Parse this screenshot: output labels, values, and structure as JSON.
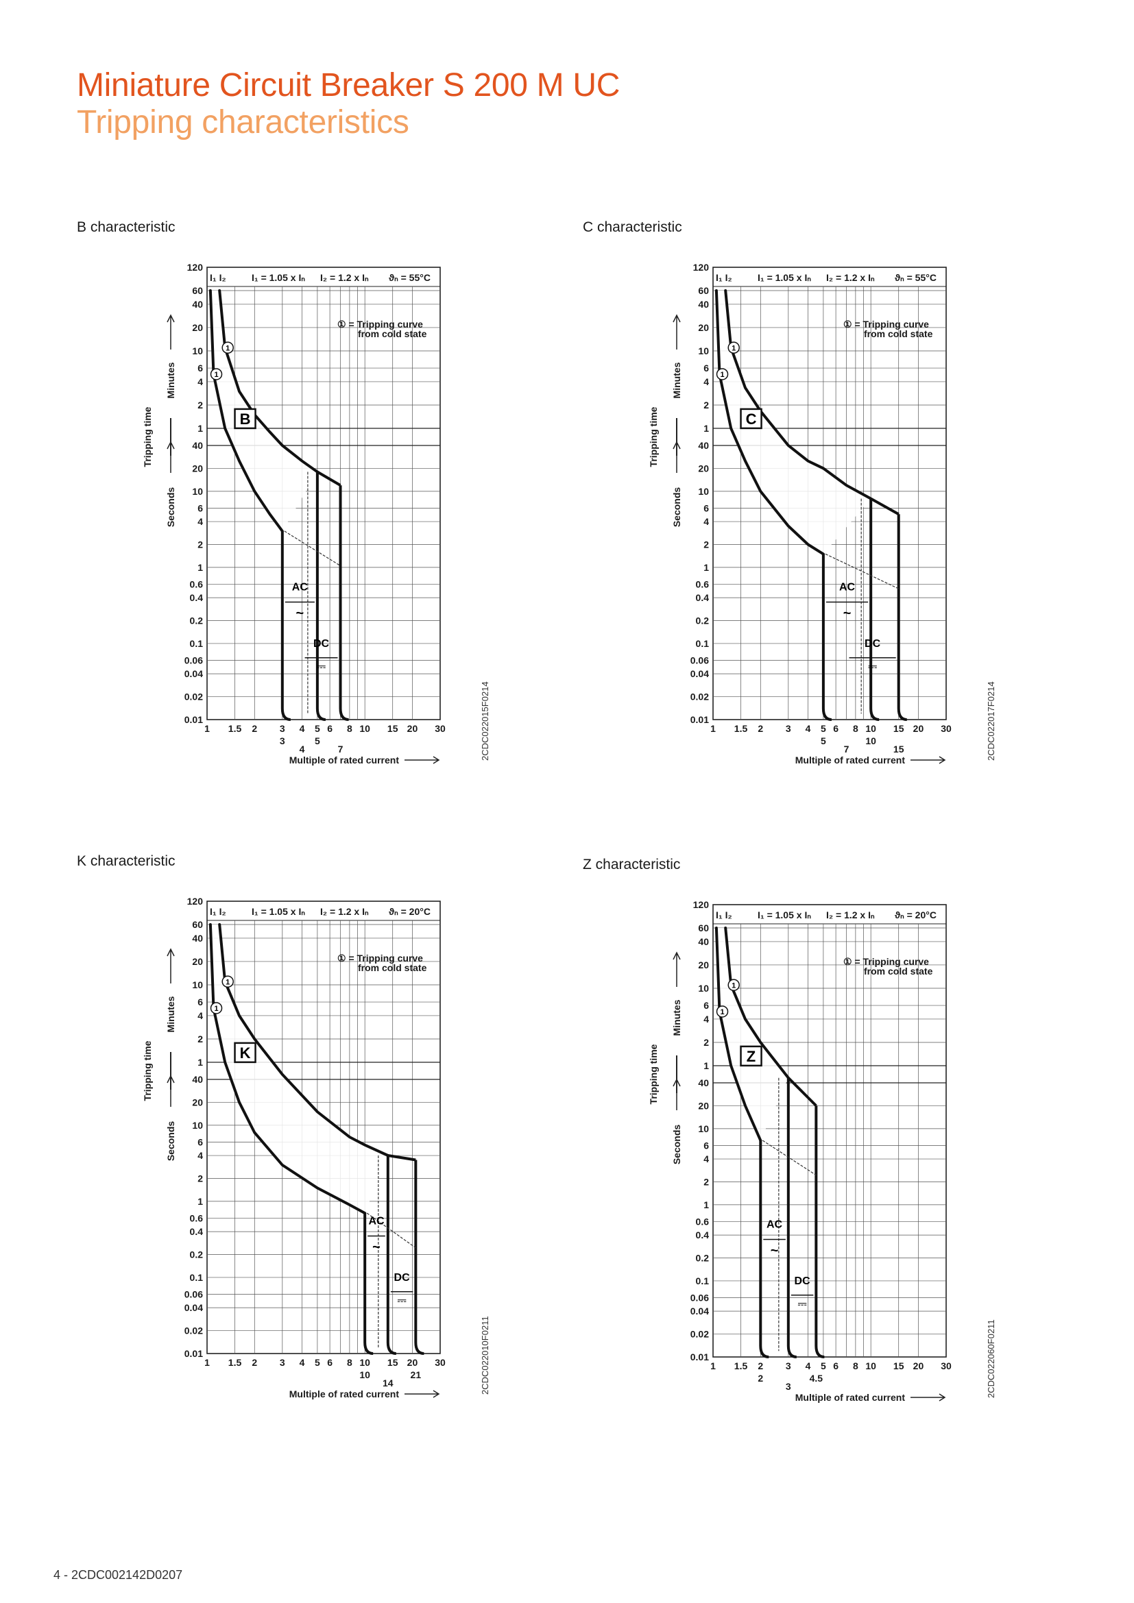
{
  "header": {
    "title": "Miniature Circuit Breaker S 200 M UC",
    "subtitle": "Tripping characteristics",
    "title_color": "#e2541e",
    "subtitle_color": "#f2a162"
  },
  "footer": {
    "text": "4 - 2CDC002142D0207"
  },
  "chart_data": [
    {
      "type": "line",
      "heading": "B characteristic",
      "letter": "B",
      "code": "2CDC022015F0214",
      "params": [
        "I₁ = 1.05 x Iₙ",
        "I₂ = 1.2 x Iₙ",
        "ϑₙ = 55°C"
      ],
      "i_labels": "I₁ I₂",
      "legend": [
        "① = Tripping curve",
        "from cold state"
      ],
      "xlabel": "Multiple of rated current",
      "x_scale": "log",
      "xlim": [
        1,
        30
      ],
      "x_ticks": [
        "1",
        "1.5",
        "2",
        "3",
        "4",
        "5",
        "6",
        "8",
        "10",
        "15",
        "20",
        "30"
      ],
      "x_ticks_secondary": [
        [
          "3",
          3
        ],
        [
          "4",
          4
        ],
        [
          "5",
          5
        ],
        [
          "7",
          7
        ]
      ],
      "y_scale": "log",
      "y_ticks_minutes": [
        "120",
        "60",
        "40",
        "20",
        "10",
        "6",
        "4",
        "2",
        "1"
      ],
      "y_ticks_seconds": [
        "40",
        "20",
        "10",
        "6",
        "4",
        "2",
        "1",
        "0.6",
        "0.4",
        "0.2",
        "0.1",
        "0.06",
        "0.04",
        "0.02",
        "0.01"
      ],
      "ylabel": "Tripping time",
      "ylabel_minutes": "Minutes",
      "ylabel_seconds": "Seconds",
      "lower_curve": [
        [
          1.05,
          3600
        ],
        [
          1.1,
          300
        ],
        [
          1.3,
          60
        ],
        [
          1.6,
          25
        ],
        [
          2.0,
          10
        ],
        [
          2.5,
          5
        ],
        [
          3.0,
          3
        ]
      ],
      "upper_curve": [
        [
          1.2,
          3600
        ],
        [
          1.3,
          660
        ],
        [
          1.6,
          180
        ],
        [
          2.0,
          90
        ],
        [
          2.5,
          55
        ],
        [
          3.0,
          40
        ],
        [
          4.0,
          25
        ],
        [
          5.0,
          18
        ]
      ],
      "dc_tail": [
        [
          5.0,
          18
        ],
        [
          7.0,
          12
        ]
      ],
      "ac_range": [
        3,
        5
      ],
      "dc_range": [
        4,
        7
      ],
      "ac_label": "AC",
      "dc_label": "DC",
      "ac_symbol": "~",
      "dc_symbol": "⎓",
      "instant_time": 0.01
    },
    {
      "type": "line",
      "heading": "C characteristic",
      "letter": "C",
      "code": "2CDC022017F0214",
      "params": [
        "I₁ = 1.05 x Iₙ",
        "I₂ = 1.2 x Iₙ",
        "ϑₙ = 55°C"
      ],
      "i_labels": "I₁ I₂",
      "legend": [
        "① = Tripping curve",
        "from cold state"
      ],
      "xlabel": "Multiple of rated current",
      "x_scale": "log",
      "xlim": [
        1,
        30
      ],
      "x_ticks": [
        "1",
        "1.5",
        "2",
        "3",
        "4",
        "5",
        "6",
        "8",
        "10",
        "15",
        "20",
        "30"
      ],
      "x_ticks_secondary": [
        [
          "5",
          5
        ],
        [
          "7",
          7
        ],
        [
          "10",
          10
        ],
        [
          "15",
          15
        ]
      ],
      "y_scale": "log",
      "y_ticks_minutes": [
        "120",
        "60",
        "40",
        "20",
        "10",
        "6",
        "4",
        "2",
        "1"
      ],
      "y_ticks_seconds": [
        "40",
        "20",
        "10",
        "6",
        "4",
        "2",
        "1",
        "0.6",
        "0.4",
        "0.2",
        "0.1",
        "0.06",
        "0.04",
        "0.02",
        "0.01"
      ],
      "ylabel": "Tripping time",
      "ylabel_minutes": "Minutes",
      "ylabel_seconds": "Seconds",
      "lower_curve": [
        [
          1.05,
          3600
        ],
        [
          1.1,
          300
        ],
        [
          1.3,
          60
        ],
        [
          1.6,
          25
        ],
        [
          2.0,
          10
        ],
        [
          3.0,
          3.5
        ],
        [
          4.0,
          2
        ],
        [
          5.0,
          1.5
        ]
      ],
      "upper_curve": [
        [
          1.2,
          3600
        ],
        [
          1.3,
          660
        ],
        [
          1.6,
          200
        ],
        [
          2.0,
          100
        ],
        [
          3.0,
          40
        ],
        [
          4.0,
          25
        ],
        [
          5.0,
          20
        ],
        [
          7.0,
          12
        ],
        [
          10.0,
          8
        ]
      ],
      "dc_tail": [
        [
          10.0,
          8
        ],
        [
          15.0,
          5
        ]
      ],
      "ac_range": [
        5,
        10
      ],
      "dc_range": [
        7,
        15
      ],
      "ac_label": "AC",
      "dc_label": "DC",
      "ac_symbol": "~",
      "dc_symbol": "⎓",
      "instant_time": 0.01
    },
    {
      "type": "line",
      "heading": "K characteristic",
      "letter": "K",
      "code": "2CDC022010F0211",
      "params": [
        "I₁ = 1.05 x Iₙ",
        "I₂ = 1.2 x Iₙ",
        "ϑₙ = 20°C"
      ],
      "i_labels": "I₁ I₂",
      "legend": [
        "① = Tripping curve",
        "from cold state"
      ],
      "xlabel": "Multiple of rated current",
      "x_scale": "log",
      "xlim": [
        1,
        30
      ],
      "x_ticks": [
        "1",
        "1.5",
        "2",
        "3",
        "4",
        "5",
        "6",
        "8",
        "10",
        "15",
        "20",
        "30"
      ],
      "x_ticks_secondary": [
        [
          "10",
          10
        ],
        [
          "14",
          14
        ],
        [
          "21",
          21
        ]
      ],
      "y_scale": "log",
      "y_ticks_minutes": [
        "120",
        "60",
        "40",
        "20",
        "10",
        "6",
        "4",
        "2",
        "1"
      ],
      "y_ticks_seconds": [
        "40",
        "20",
        "10",
        "6",
        "4",
        "2",
        "1",
        "0.6",
        "0.4",
        "0.2",
        "0.1",
        "0.06",
        "0.04",
        "0.02",
        "0.01"
      ],
      "ylabel": "Tripping time",
      "ylabel_minutes": "Minutes",
      "ylabel_seconds": "Seconds",
      "lower_curve": [
        [
          1.05,
          3600
        ],
        [
          1.1,
          300
        ],
        [
          1.3,
          60
        ],
        [
          1.6,
          20
        ],
        [
          2.0,
          8
        ],
        [
          3.0,
          3
        ],
        [
          5.0,
          1.5
        ],
        [
          8.0,
          0.9
        ],
        [
          10.0,
          0.7
        ]
      ],
      "upper_curve": [
        [
          1.2,
          3600
        ],
        [
          1.3,
          660
        ],
        [
          1.6,
          240
        ],
        [
          2.0,
          120
        ],
        [
          3.0,
          45
        ],
        [
          5.0,
          15
        ],
        [
          8.0,
          7
        ],
        [
          10.0,
          5.5
        ],
        [
          14.0,
          4
        ]
      ],
      "dc_tail": [
        [
          14.0,
          4
        ],
        [
          21.0,
          3.5
        ]
      ],
      "ac_range": [
        10,
        14
      ],
      "dc_range": [
        14,
        21
      ],
      "ac_label": "AC",
      "dc_label": "DC",
      "ac_symbol": "~",
      "dc_symbol": "⎓",
      "instant_time": 0.01
    },
    {
      "type": "line",
      "heading": "Z characteristic",
      "letter": "Z",
      "code": "2CDC022060F0211",
      "params": [
        "I₁ = 1.05 x Iₙ",
        "I₂ = 1.2 x Iₙ",
        "ϑₙ = 20°C"
      ],
      "i_labels": "I₁ I₂",
      "legend": [
        "① = Tripping curve",
        "from cold state"
      ],
      "xlabel": "Multiple of rated current",
      "x_scale": "log",
      "xlim": [
        1,
        30
      ],
      "x_ticks": [
        "1",
        "1.5",
        "2",
        "3",
        "4",
        "5",
        "6",
        "8",
        "10",
        "15",
        "20",
        "30"
      ],
      "x_ticks_secondary": [
        [
          "2",
          2
        ],
        [
          "3",
          3
        ],
        [
          "4.5",
          4.5
        ]
      ],
      "y_scale": "log",
      "y_ticks_minutes": [
        "120",
        "60",
        "40",
        "20",
        "10",
        "6",
        "4",
        "2",
        "1"
      ],
      "y_ticks_seconds": [
        "40",
        "20",
        "10",
        "6",
        "4",
        "2",
        "1",
        "0.6",
        "0.4",
        "0.2",
        "0.1",
        "0.06",
        "0.04",
        "0.02",
        "0.01"
      ],
      "ylabel": "Tripping time",
      "ylabel_minutes": "Minutes",
      "ylabel_seconds": "Seconds",
      "lower_curve": [
        [
          1.05,
          3600
        ],
        [
          1.1,
          300
        ],
        [
          1.3,
          60
        ],
        [
          1.6,
          20
        ],
        [
          2.0,
          7
        ]
      ],
      "upper_curve": [
        [
          1.2,
          3600
        ],
        [
          1.3,
          660
        ],
        [
          1.6,
          240
        ],
        [
          2.0,
          120
        ],
        [
          3.0,
          45
        ]
      ],
      "dc_tail": [
        [
          3.0,
          45
        ],
        [
          4.5,
          20
        ]
      ],
      "ac_range": [
        2,
        3
      ],
      "dc_range": [
        3,
        4.5
      ],
      "ac_label": "AC",
      "dc_label": "DC",
      "ac_symbol": "~",
      "dc_symbol": "⎓",
      "instant_time": 0.01
    }
  ]
}
